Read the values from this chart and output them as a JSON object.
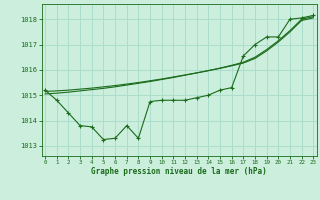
{
  "xlabel": "Graphe pression niveau de la mer (hPa)",
  "bg_color": "#cceedd",
  "grid_color": "#aaddcc",
  "line_color": "#1a6b1a",
  "x_ticks": [
    0,
    1,
    2,
    3,
    4,
    5,
    6,
    7,
    8,
    9,
    10,
    11,
    12,
    13,
    14,
    15,
    16,
    17,
    18,
    19,
    20,
    21,
    22,
    23
  ],
  "y_ticks": [
    1013,
    1014,
    1015,
    1016,
    1017,
    1018
  ],
  "ylim": [
    1012.6,
    1018.6
  ],
  "xlim": [
    -0.3,
    23.3
  ],
  "s1": [
    1015.2,
    1014.8,
    1014.3,
    1013.8,
    1013.75,
    1013.25,
    1013.3,
    1013.8,
    1013.3,
    1014.75,
    1014.8,
    1014.8,
    1014.8,
    1014.9,
    1015.0,
    1015.2,
    1015.3,
    1016.55,
    1017.0,
    1017.3,
    1017.3,
    1018.0,
    1018.05,
    1018.15
  ],
  "s2": [
    1015.05,
    1015.08,
    1015.12,
    1015.17,
    1015.22,
    1015.27,
    1015.33,
    1015.4,
    1015.47,
    1015.54,
    1015.62,
    1015.7,
    1015.79,
    1015.88,
    1015.97,
    1016.07,
    1016.18,
    1016.3,
    1016.5,
    1016.8,
    1017.15,
    1017.55,
    1018.0,
    1018.1
  ],
  "s3": [
    1015.15,
    1015.17,
    1015.2,
    1015.24,
    1015.28,
    1015.33,
    1015.38,
    1015.44,
    1015.5,
    1015.57,
    1015.64,
    1015.72,
    1015.8,
    1015.88,
    1015.97,
    1016.06,
    1016.16,
    1016.27,
    1016.45,
    1016.75,
    1017.1,
    1017.5,
    1017.95,
    1018.05
  ]
}
